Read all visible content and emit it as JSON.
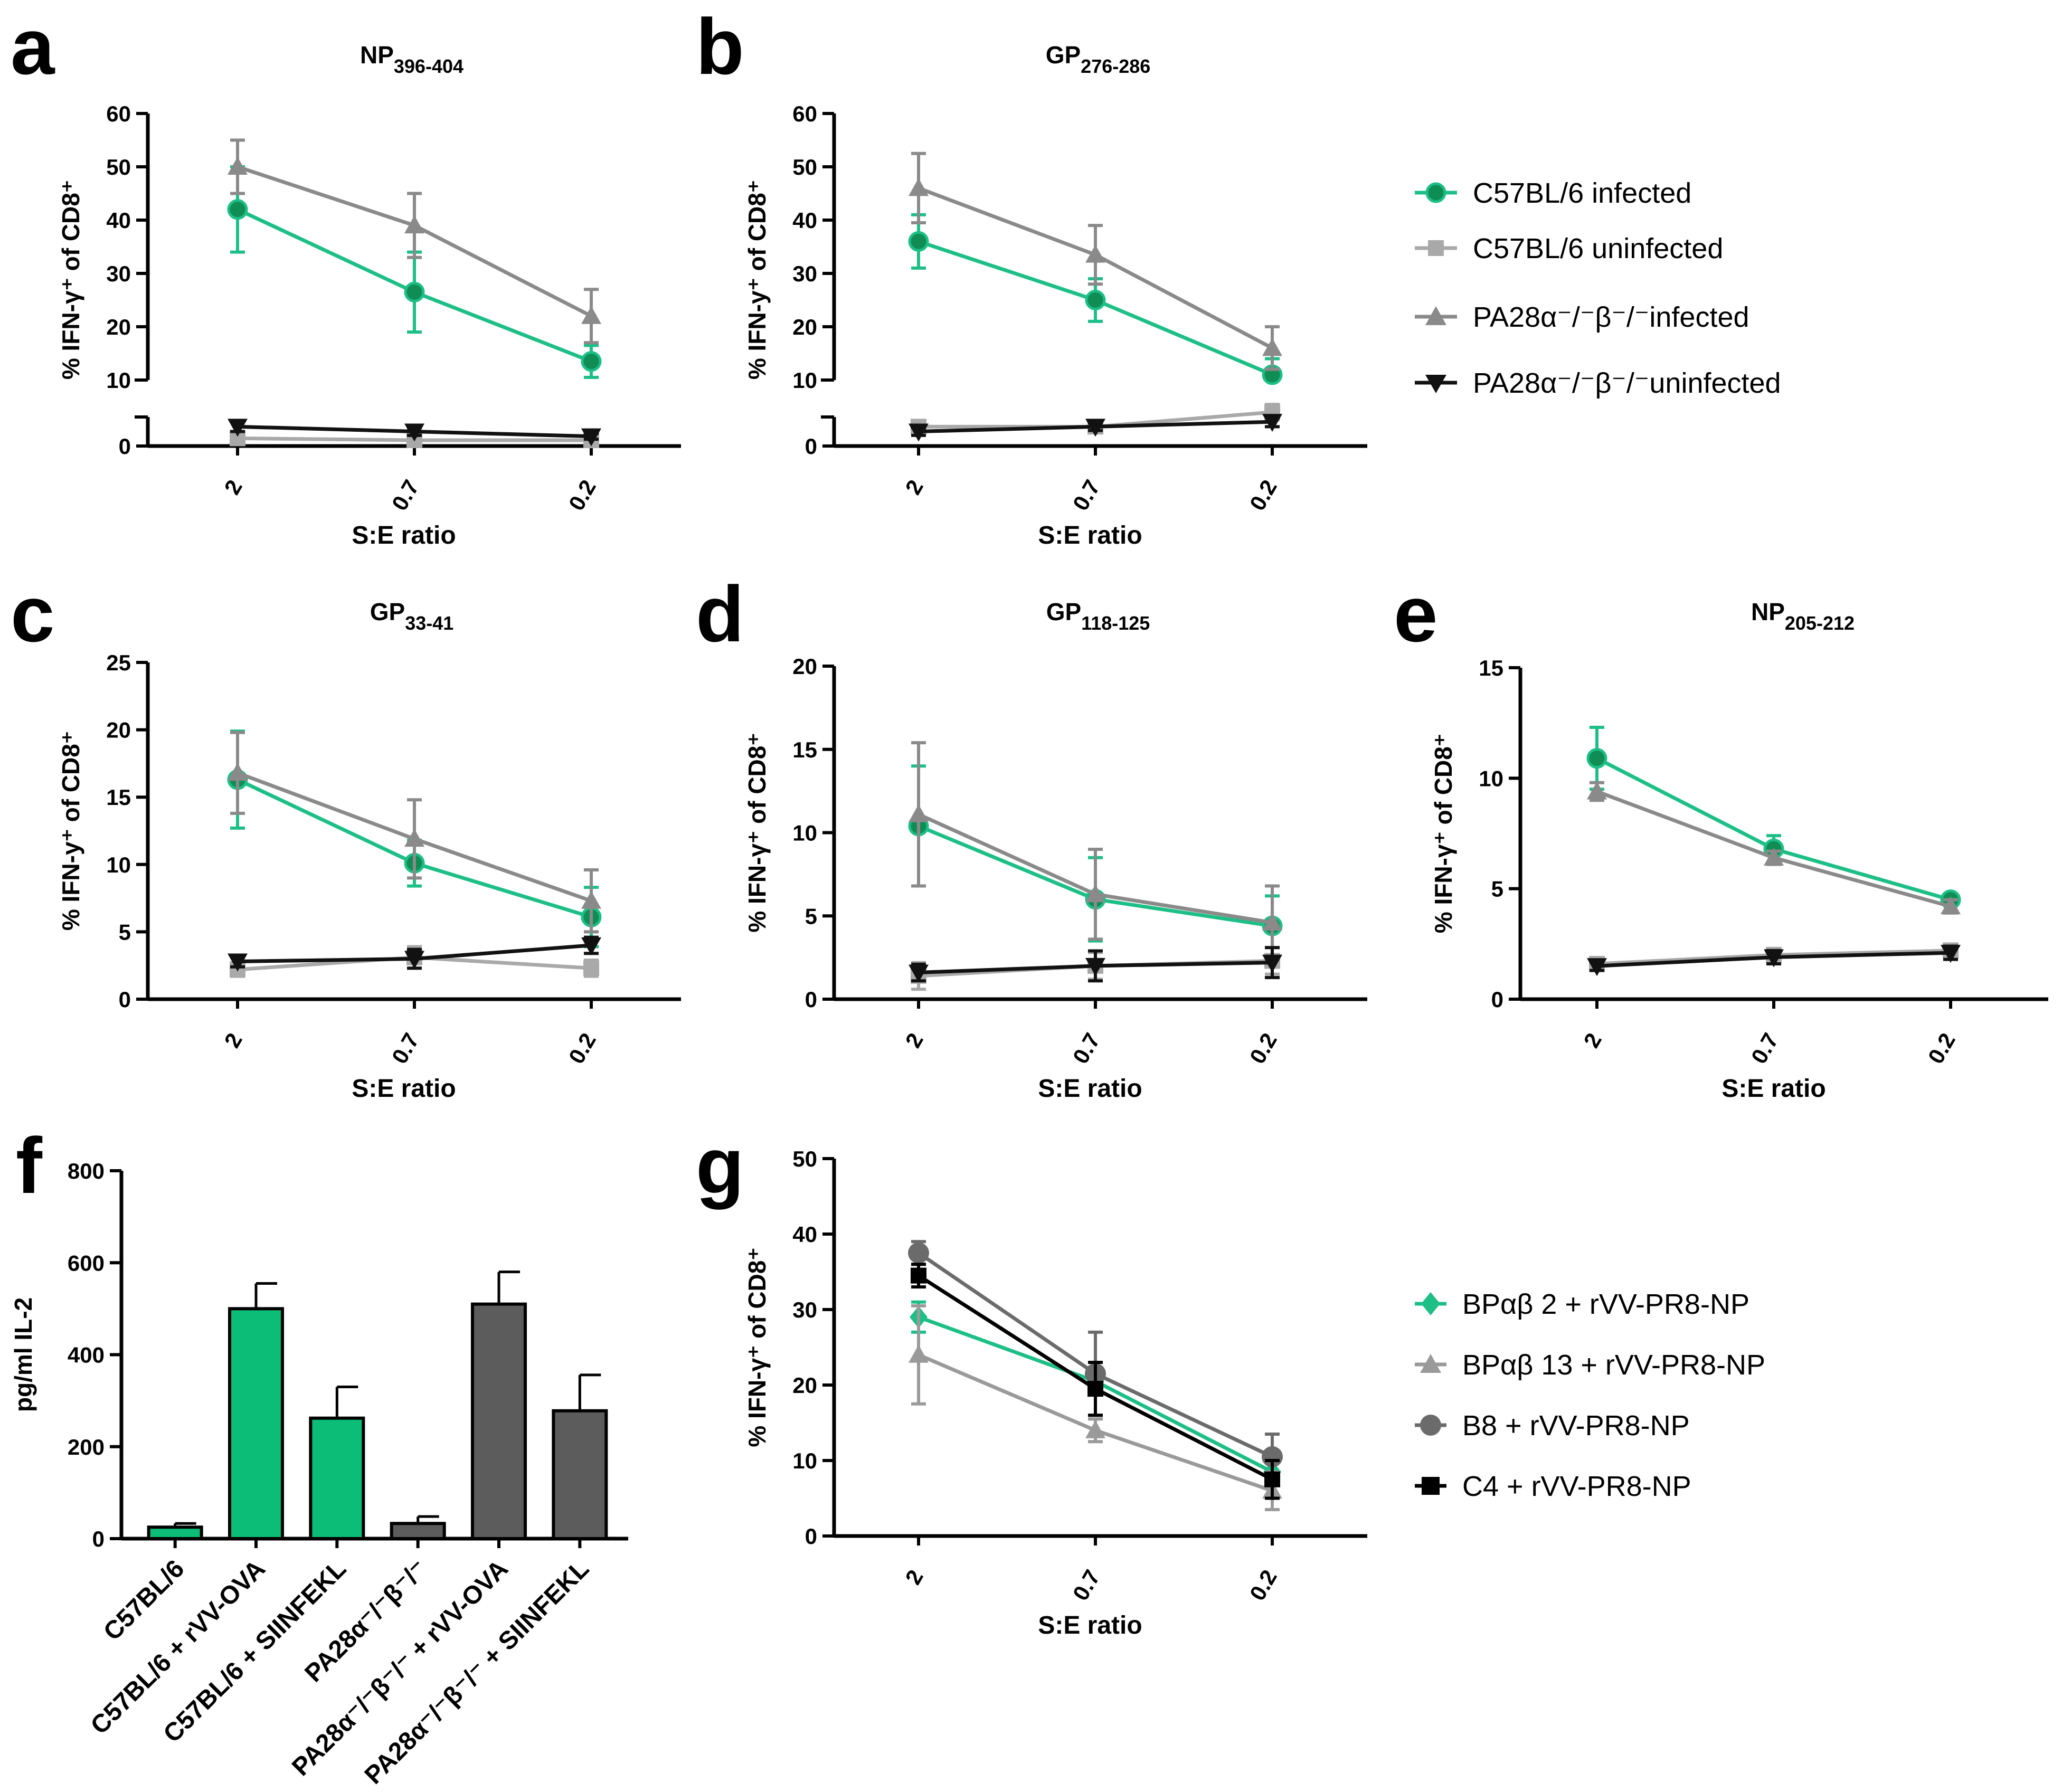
{
  "colors": {
    "c57_infected": "#1dbf86",
    "c57_uninfected": "#a9a9a9",
    "pa28_infected": "#8a8a8a",
    "pa28_uninfected": "#111111",
    "bar_green": "#0bbd77",
    "bar_gray": "#5c5c5c",
    "g_bpab2": "#1dbf86",
    "g_bpab13": "#9a9a9a",
    "g_b8": "#6b6b6b",
    "g_c4": "#000000"
  },
  "legend_top": [
    "C57BL/6 infected",
    "C57BL/6 uninfected",
    "PA28α⁻/⁻β⁻/⁻infected",
    "PA28α⁻/⁻β⁻/⁻uninfected"
  ],
  "legend_g": [
    "BPαβ 2 + rVV-PR8-NP",
    "BPαβ 13 + rVV-PR8-NP",
    "B8 + rVV-PR8-NP",
    "C4 + rVV-PR8-NP"
  ],
  "chart_data": [
    {
      "panel": "a",
      "type": "line",
      "title": "NP",
      "title_sub": "396-404",
      "xlabel": "S:E ratio",
      "ylabel": "% IFN-γ⁺ of CD8⁺",
      "categories": [
        "2",
        "0.7",
        "0.2"
      ],
      "ylim": [
        0,
        60
      ],
      "yticks": [
        0,
        10,
        20,
        30,
        40,
        50,
        60
      ],
      "axis_break": true,
      "series": [
        {
          "name": "C57BL/6 infected",
          "values": [
            42,
            26.5,
            13.5
          ],
          "errors": [
            8,
            7.5,
            3
          ]
        },
        {
          "name": "C57BL/6 uninfected",
          "values": [
            0.8,
            0.6,
            0.6
          ],
          "errors": [
            0.4,
            0.3,
            0.3
          ]
        },
        {
          "name": "PA28α⁻/⁻β⁻/⁻infected",
          "values": [
            50,
            39,
            22
          ],
          "errors": [
            5,
            6,
            5
          ]
        },
        {
          "name": "PA28α⁻/⁻β⁻/⁻uninfected",
          "values": [
            2,
            1.5,
            1
          ],
          "errors": [
            0.5,
            0.4,
            0.3
          ]
        }
      ]
    },
    {
      "panel": "b",
      "type": "line",
      "title": "GP",
      "title_sub": "276-286",
      "xlabel": "S:E ratio",
      "ylabel": "% IFN-y⁺ of CD8⁺",
      "categories": [
        "2",
        "0.7",
        "0.2"
      ],
      "ylim": [
        0,
        60
      ],
      "yticks": [
        0,
        10,
        20,
        30,
        40,
        50,
        60
      ],
      "axis_break": true,
      "series": [
        {
          "name": "C57BL/6 infected",
          "values": [
            36,
            25,
            11
          ],
          "errors": [
            5,
            4,
            3
          ]
        },
        {
          "name": "C57BL/6 uninfected",
          "values": [
            2,
            2,
            3.5
          ],
          "errors": [
            0.5,
            0.5,
            0.8
          ]
        },
        {
          "name": "PA28α⁻/⁻β⁻/⁻infected",
          "values": [
            46,
            33.5,
            16
          ],
          "errors": [
            6.5,
            5.5,
            4
          ]
        },
        {
          "name": "PA28α⁻/⁻β⁻/⁻uninfected",
          "values": [
            1.5,
            2,
            2.5
          ],
          "errors": [
            0.4,
            0.4,
            0.5
          ]
        }
      ]
    },
    {
      "panel": "c",
      "type": "line",
      "title": "GP",
      "title_sub": "33-41",
      "xlabel": "S:E ratio",
      "ylabel": "% IFN-y⁺ of CD8⁺",
      "categories": [
        "2",
        "0.7",
        "0.2"
      ],
      "ylim": [
        0,
        25
      ],
      "yticks": [
        0,
        5,
        10,
        15,
        20,
        25
      ],
      "axis_break": false,
      "series": [
        {
          "name": "C57BL/6 infected",
          "values": [
            16.3,
            10.1,
            6.1
          ],
          "errors": [
            3.6,
            1.7,
            2.2
          ]
        },
        {
          "name": "C57BL/6 uninfected",
          "values": [
            2.2,
            3.1,
            2.3
          ],
          "errors": [
            0.5,
            0.8,
            0.6
          ]
        },
        {
          "name": "PA28α⁻/⁻β⁻/⁻infected",
          "values": [
            16.8,
            11.9,
            7.3
          ],
          "errors": [
            3,
            2.9,
            2.3
          ]
        },
        {
          "name": "PA28α⁻/⁻β⁻/⁻uninfected",
          "values": [
            2.8,
            3,
            4
          ],
          "errors": [
            0.4,
            0.7,
            0.6
          ]
        }
      ]
    },
    {
      "panel": "d",
      "type": "line",
      "title": "GP",
      "title_sub": "118-125",
      "xlabel": "S:E ratio",
      "ylabel": "% IFN-γ⁺ of CD8⁺",
      "categories": [
        "2",
        "0.7",
        "0.2"
      ],
      "ylim": [
        0,
        20
      ],
      "yticks": [
        0,
        5,
        10,
        15,
        20
      ],
      "axis_break": false,
      "series": [
        {
          "name": "C57BL/6 infected",
          "values": [
            10.4,
            6,
            4.4
          ],
          "errors": [
            3.6,
            2.5,
            1.8
          ]
        },
        {
          "name": "C57BL/6 uninfected",
          "values": [
            1.4,
            2,
            2.3
          ],
          "errors": [
            0.8,
            0.8,
            0.8
          ]
        },
        {
          "name": "PA28α⁻/⁻β⁻/⁻infected",
          "values": [
            11.1,
            6.3,
            4.6
          ],
          "errors": [
            4.3,
            2.7,
            2.2
          ]
        },
        {
          "name": "PA28α⁻/⁻β⁻/⁻uninfected",
          "values": [
            1.6,
            2,
            2.2
          ],
          "errors": [
            0.5,
            0.9,
            0.9
          ]
        }
      ]
    },
    {
      "panel": "e",
      "type": "line",
      "title": "NP",
      "title_sub": "205-212",
      "xlabel": "S:E ratio",
      "ylabel": "% IFN-γ⁺ of CD8⁺",
      "categories": [
        "2",
        "0.7",
        "0.2"
      ],
      "ylim": [
        0,
        15
      ],
      "yticks": [
        0,
        5,
        10,
        15
      ],
      "axis_break": false,
      "series": [
        {
          "name": "C57BL/6 infected",
          "values": [
            10.9,
            6.8,
            4.5
          ],
          "errors": [
            1.4,
            0.6,
            0.2
          ]
        },
        {
          "name": "C57BL/6 uninfected",
          "values": [
            1.6,
            2,
            2.2
          ],
          "errors": [
            0.2,
            0.3,
            0.3
          ]
        },
        {
          "name": "PA28α⁻/⁻β⁻/⁻infected",
          "values": [
            9.4,
            6.4,
            4.2
          ],
          "errors": [
            0.4,
            0.3,
            0.3
          ]
        },
        {
          "name": "PA28α⁻/⁻β⁻/⁻uninfected",
          "values": [
            1.5,
            1.9,
            2.1
          ],
          "errors": [
            0.2,
            0.3,
            0.3
          ]
        }
      ]
    },
    {
      "panel": "f",
      "type": "bar",
      "ylabel": "pg/ml IL-2",
      "categories": [
        "C57BL/6",
        "C57BL/6 + rVV-OVA",
        "C57BL/6 + SIINFEKL",
        "PA28α⁻/⁻β⁻/⁻",
        "PA28α⁻/⁻β⁻/⁻ + rVV-OVA",
        "PA28α⁻/⁻β⁻/⁻ + SIINFEKL"
      ],
      "values": [
        25,
        500,
        262,
        33,
        510,
        278
      ],
      "errors": [
        8,
        55,
        68,
        15,
        70,
        78
      ],
      "groups": [
        "green",
        "green",
        "green",
        "gray",
        "gray",
        "gray"
      ],
      "ylim": [
        0,
        800
      ],
      "yticks": [
        0,
        200,
        400,
        600,
        800
      ]
    },
    {
      "panel": "g",
      "type": "line",
      "xlabel": "S:E ratio",
      "ylabel": "% IFN-γ⁺ of CD8⁺",
      "categories": [
        "2",
        "0.7",
        "0.2"
      ],
      "ylim": [
        0,
        50
      ],
      "yticks": [
        0,
        10,
        20,
        30,
        40,
        50
      ],
      "axis_break": false,
      "series": [
        {
          "name": "BPαβ 2 + rVV-PR8-NP",
          "values": [
            29,
            20.5,
            8.5
          ],
          "errors": [
            2,
            1.5,
            1.5
          ]
        },
        {
          "name": "BPαβ 13 + rVV-PR8-NP",
          "values": [
            24,
            14,
            6
          ],
          "errors": [
            6.5,
            1.5,
            2.5
          ]
        },
        {
          "name": "B8 + rVV-PR8-NP",
          "values": [
            37.5,
            21.5,
            10.5
          ],
          "errors": [
            1.5,
            5.5,
            3
          ]
        },
        {
          "name": "C4 + rVV-PR8-NP",
          "values": [
            34.5,
            19.5,
            7.5
          ],
          "errors": [
            1.5,
            3.5,
            2.5
          ]
        }
      ]
    }
  ]
}
